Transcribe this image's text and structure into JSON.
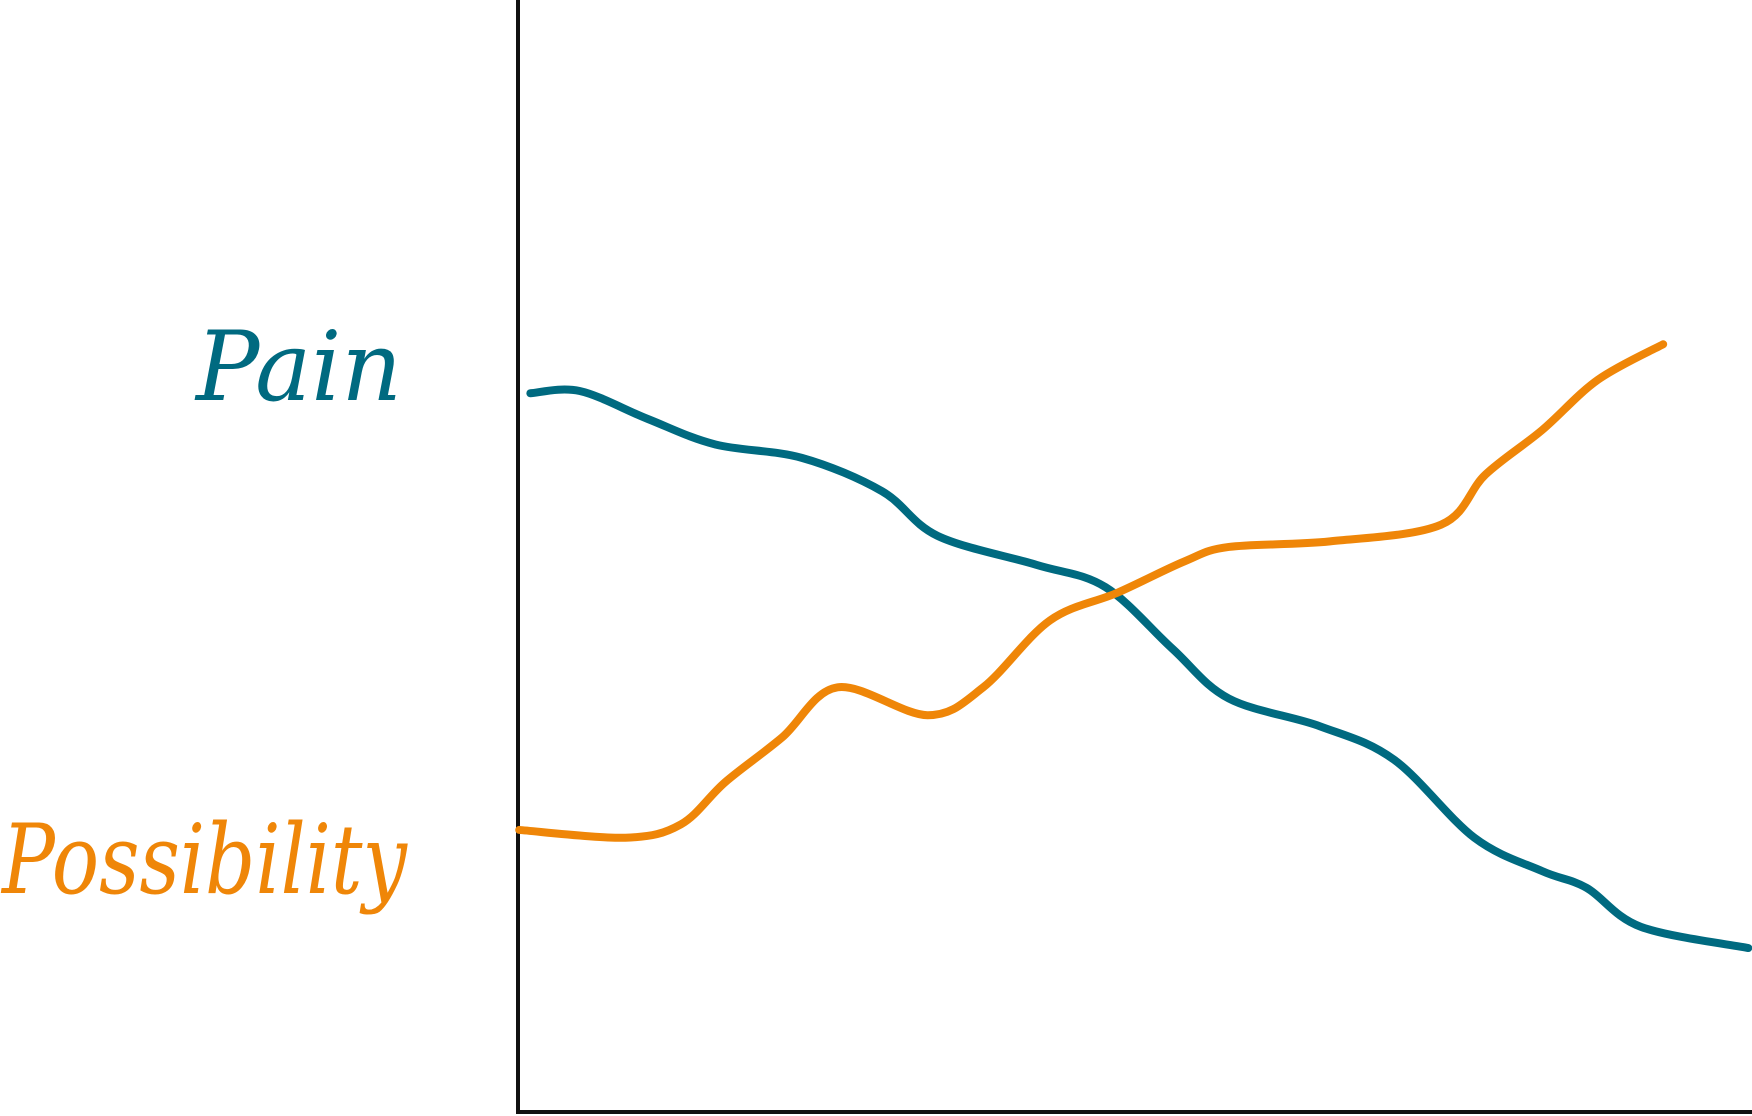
{
  "chart_data": {
    "type": "line",
    "title": "",
    "xlabel": "",
    "ylabel": "",
    "xlim": [
      0,
      100
    ],
    "ylim": [
      0,
      100
    ],
    "grid": false,
    "legend": "none",
    "series": [
      {
        "name": "Pain",
        "color": "#006a80",
        "x": [
          1,
          5,
          10.5,
          16,
          23,
          29.5,
          34,
          42,
          47.6,
          53,
          57.6,
          65,
          71,
          77.5,
          83,
          86.6,
          91,
          99.7
        ],
        "y": [
          64.7,
          64.9,
          62.4,
          60.1,
          58.9,
          55.9,
          51.9,
          49.3,
          47.3,
          41.8,
          37.3,
          34.8,
          31.8,
          24.8,
          21.8,
          20.3,
          16.8,
          14.9
        ]
      },
      {
        "name": "Possibility",
        "color": "#ef8608",
        "x": [
          0.1,
          8.7,
          13.2,
          16.8,
          21.4,
          25.9,
          33.2,
          37.7,
          43.1,
          48.6,
          54,
          57.6,
          65.8,
          74.8,
          78.4,
          83,
          87.5,
          92.8
        ],
        "y": [
          25.5,
          24.8,
          26,
          29.8,
          33.8,
          38.3,
          35.8,
          38.3,
          44.3,
          46.8,
          49.6,
          50.9,
          51.4,
          52.9,
          57.4,
          61.4,
          65.9,
          69.1
        ]
      }
    ]
  }
}
